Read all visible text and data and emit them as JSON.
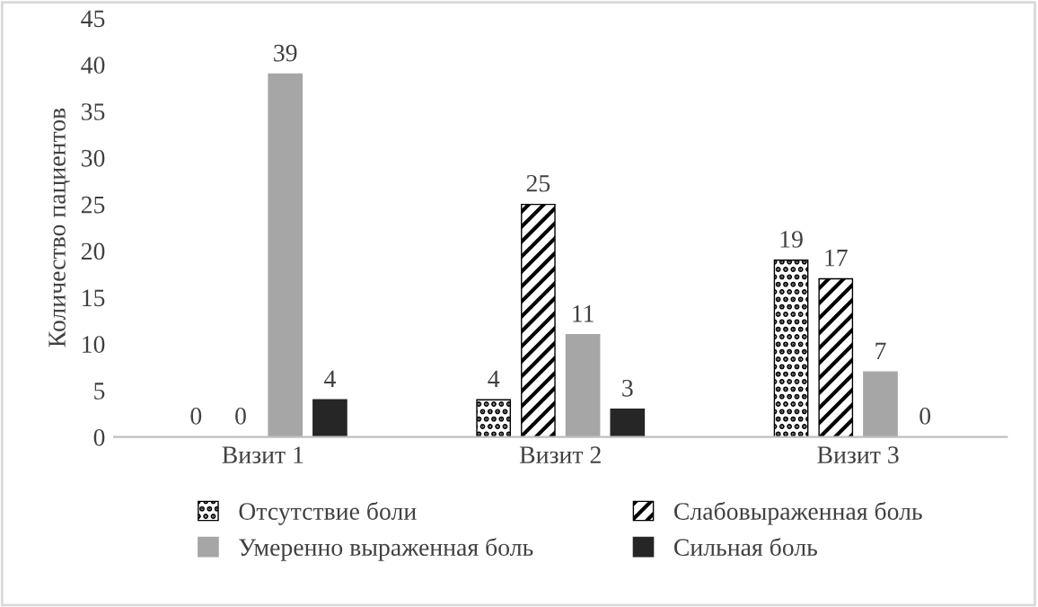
{
  "chart_data": {
    "type": "bar",
    "ylabel": "Количество пациентов",
    "categories": [
      "Визит 1",
      "Визит 2",
      "Визит 3"
    ],
    "series": [
      {
        "name": "Отсутствие боли",
        "color": "#000000",
        "values": [
          0,
          4,
          19
        ]
      },
      {
        "name": "Слабовыраженная боль",
        "color": "#000000",
        "values": [
          0,
          25,
          17
        ]
      },
      {
        "name": "Умеренно выраженная боль",
        "color": "#a6a6a6",
        "values": [
          39,
          11,
          7
        ]
      },
      {
        "name": "Сильная боль",
        "color": "#262626",
        "values": [
          4,
          3,
          0
        ]
      }
    ],
    "ylim": [
      0,
      45
    ],
    "yticks": [
      0,
      5,
      10,
      15,
      20,
      25,
      30,
      35,
      40,
      45
    ],
    "grid": false,
    "legend": "bottom",
    "data_labels": true
  }
}
